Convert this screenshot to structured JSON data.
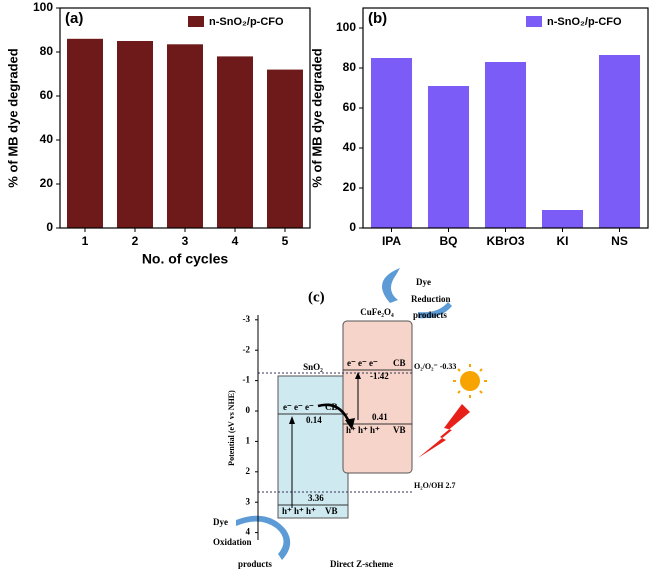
{
  "chart_data": [
    {
      "type": "bar",
      "panel": "(a)",
      "categories": [
        "1",
        "2",
        "3",
        "4",
        "5"
      ],
      "series": [
        {
          "name": "n-SnO₂/p-CFO",
          "color": "#6e1a1a",
          "values": [
            86,
            85,
            83.5,
            78,
            72
          ]
        }
      ],
      "x_label": "No. of cycles",
      "y_label": "% of MB dye degraded",
      "ylim": [
        0,
        100
      ],
      "yticks": [
        0,
        20,
        40,
        60,
        80,
        100
      ],
      "legend": "top-right"
    },
    {
      "type": "bar",
      "panel": "(b)",
      "categories": [
        "IPA",
        "BQ",
        "KBrO3",
        "KI",
        "NS"
      ],
      "series": [
        {
          "name": "n-SnO₂/p-CFO",
          "color": "#7b5cf6",
          "values": [
            85,
            71,
            83,
            9,
            86.5
          ]
        }
      ],
      "y_label": "% of MB dye degraded",
      "ylim": [
        0,
        110
      ],
      "yticks": [
        0,
        20,
        40,
        60,
        80,
        100
      ],
      "legend": "top-right"
    }
  ],
  "diagram": {
    "label": "(c)",
    "axis_label": "Potential (eV vs NHE)",
    "ticks": [
      -3,
      -2,
      -1,
      0,
      1,
      2,
      3,
      4
    ],
    "cufe2o4": "CuFe₂O₄",
    "sno2": "SnO₂",
    "cfo_cb_electrons": "e⁻ e⁻ e⁻",
    "cfo_cb": "CB",
    "cfo_cb_value": "-1.42",
    "cfo_vb_holes": "h⁺ h⁺ h⁺",
    "cfo_vb": "VB",
    "cfo_vb_value": "0.41",
    "sno2_cb_electrons": "e⁻ e⁻ e⁻",
    "sno2_cb": "CB",
    "sno2_cb_value": "0.14",
    "sno2_vb_holes": "h⁺ h⁺ h⁺",
    "sno2_vb": "VB",
    "sno2_vb_value": "3.36",
    "o2_level": "O₂/O₂⁻ -0.33",
    "h2o_level": "H₂O/OH 2.7",
    "reduction": [
      "Dye",
      "Reduction",
      "products"
    ],
    "oxidation": [
      "Dye",
      "Oxidation",
      "products"
    ],
    "caption": "Direct Z-scheme"
  }
}
